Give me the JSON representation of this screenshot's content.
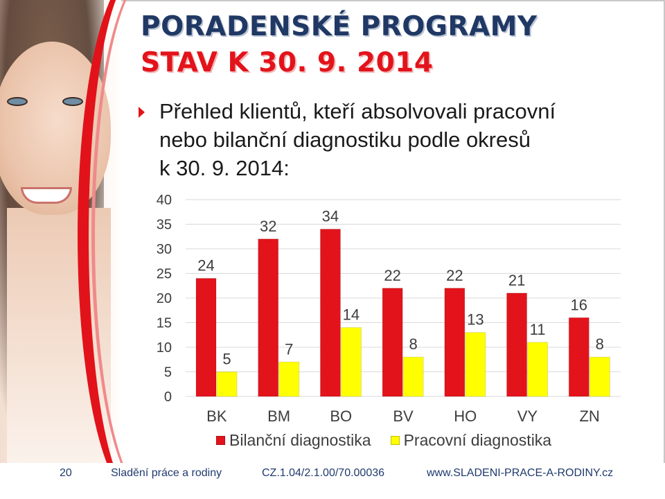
{
  "title": {
    "line1": "PORADENSKÉ PROGRAMY",
    "line2": "STAV K 30. 9. 2014"
  },
  "bullet": {
    "line1": "Přehled klientů, kteří absolvovali pracovní",
    "line2": "nebo bilanční diagnostiku podle okresů",
    "line3": "k 30. 9. 2014:"
  },
  "colors": {
    "title_dark": "#203864",
    "accent_red": "#e3131b",
    "bar_red": "#e3131b",
    "bar_yellow": "#ffff00",
    "footer_text": "#1f3a6e"
  },
  "chart_data": {
    "type": "bar",
    "categories": [
      "BK",
      "BM",
      "BO",
      "BV",
      "HO",
      "VY",
      "ZN"
    ],
    "series": [
      {
        "name": "Bilanční diagnostika",
        "color": "#e3131b",
        "values": [
          24,
          32,
          34,
          22,
          22,
          21,
          16
        ]
      },
      {
        "name": "Pracovní diagnostika",
        "color": "#ffff00",
        "values": [
          5,
          7,
          14,
          8,
          13,
          11,
          8
        ]
      }
    ],
    "ylim": [
      0,
      40
    ],
    "yticks": [
      "0",
      "5",
      "10",
      "15",
      "20",
      "25",
      "30",
      "35",
      "40"
    ],
    "grid": true,
    "legend_position": "bottom"
  },
  "footer": {
    "page_number": "20",
    "project": "Sladění práce a rodiny",
    "code": "CZ.1.04/2.1.00/70.00036",
    "website": "www.SLADENI-PRACE-A-RODINY.cz"
  }
}
